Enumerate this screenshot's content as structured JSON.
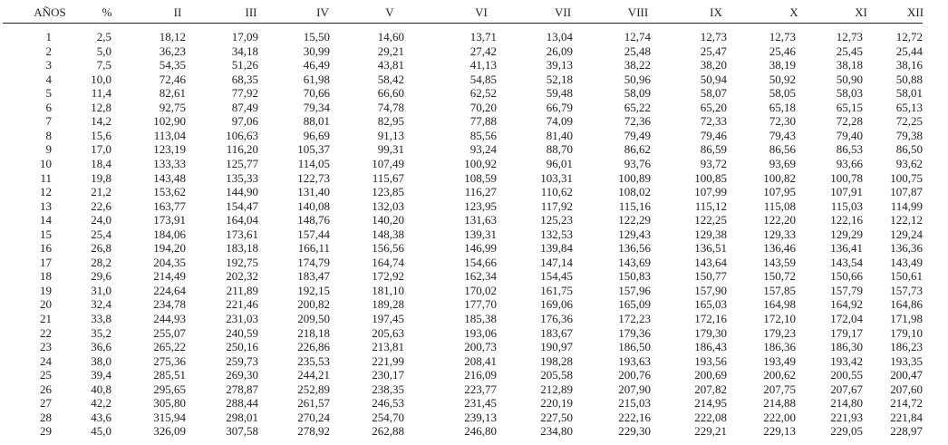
{
  "table": {
    "headers": [
      "AÑOS",
      "%",
      "II",
      "III",
      "IV",
      "V",
      "VI",
      "VII",
      "VIII",
      "IX",
      "X",
      "XI",
      "XII"
    ],
    "rows": [
      [
        "1",
        "2,5",
        "18,12",
        "17,09",
        "15,50",
        "14,60",
        "13,71",
        "13,04",
        "12,74",
        "12,73",
        "12,73",
        "12,73",
        "12,72"
      ],
      [
        "2",
        "5,0",
        "36,23",
        "34,18",
        "30,99",
        "29,21",
        "27,42",
        "26,09",
        "25,48",
        "25,47",
        "25,46",
        "25,45",
        "25,44"
      ],
      [
        "3",
        "7,5",
        "54,35",
        "51,26",
        "46,49",
        "43,81",
        "41,13",
        "39,13",
        "38,22",
        "38,20",
        "38,19",
        "38,18",
        "38,16"
      ],
      [
        "4",
        "10,0",
        "72,46",
        "68,35",
        "61,98",
        "58,42",
        "54,85",
        "52,18",
        "50,96",
        "50,94",
        "50,92",
        "50,90",
        "50,88"
      ],
      [
        "5",
        "11,4",
        "82,61",
        "77,92",
        "70,66",
        "66,60",
        "62,52",
        "59,48",
        "58,09",
        "58,07",
        "58,05",
        "58,03",
        "58,01"
      ],
      [
        "6",
        "12,8",
        "92,75",
        "87,49",
        "79,34",
        "74,78",
        "70,20",
        "66,79",
        "65,22",
        "65,20",
        "65,18",
        "65,15",
        "65,13"
      ],
      [
        "7",
        "14,2",
        "102,90",
        "97,06",
        "88,01",
        "82,95",
        "77,88",
        "74,09",
        "72,36",
        "72,33",
        "72,30",
        "72,28",
        "72,25"
      ],
      [
        "8",
        "15,6",
        "113,04",
        "106,63",
        "96,69",
        "91,13",
        "85,56",
        "81,40",
        "79,49",
        "79,46",
        "79,43",
        "79,40",
        "79,38"
      ],
      [
        "9",
        "17,0",
        "123,19",
        "116,20",
        "105,37",
        "99,31",
        "93,24",
        "88,70",
        "86,62",
        "86,59",
        "86,56",
        "86,53",
        "86,50"
      ],
      [
        "10",
        "18,4",
        "133,33",
        "125,77",
        "114,05",
        "107,49",
        "100,92",
        "96,01",
        "93,76",
        "93,72",
        "93,69",
        "93,66",
        "93,62"
      ],
      [
        "11",
        "19,8",
        "143,48",
        "135,33",
        "122,73",
        "115,67",
        "108,59",
        "103,31",
        "100,89",
        "100,85",
        "100,82",
        "100,78",
        "100,75"
      ],
      [
        "12",
        "21,2",
        "153,62",
        "144,90",
        "131,40",
        "123,85",
        "116,27",
        "110,62",
        "108,02",
        "107,99",
        "107,95",
        "107,91",
        "107,87"
      ],
      [
        "13",
        "22,6",
        "163,77",
        "154,47",
        "140,08",
        "132,03",
        "123,95",
        "117,92",
        "115,16",
        "115,12",
        "115,08",
        "115,03",
        "114,99"
      ],
      [
        "14",
        "24,0",
        "173,91",
        "164,04",
        "148,76",
        "140,20",
        "131,63",
        "125,23",
        "122,29",
        "122,25",
        "122,20",
        "122,16",
        "122,12"
      ],
      [
        "15",
        "25,4",
        "184,06",
        "173,61",
        "157,44",
        "148,38",
        "139,31",
        "132,53",
        "129,43",
        "129,38",
        "129,33",
        "129,29",
        "129,24"
      ],
      [
        "16",
        "26,8",
        "194,20",
        "183,18",
        "166,11",
        "156,56",
        "146,99",
        "139,84",
        "136,56",
        "136,51",
        "136,46",
        "136,41",
        "136,36"
      ],
      [
        "17",
        "28,2",
        "204,35",
        "192,75",
        "174,79",
        "164,74",
        "154,66",
        "147,14",
        "143,69",
        "143,64",
        "143,59",
        "143,54",
        "143,49"
      ],
      [
        "18",
        "29,6",
        "214,49",
        "202,32",
        "183,47",
        "172,92",
        "162,34",
        "154,45",
        "150,83",
        "150,77",
        "150,72",
        "150,66",
        "150,61"
      ],
      [
        "19",
        "31,0",
        "224,64",
        "211,89",
        "192,15",
        "181,10",
        "170,02",
        "161,75",
        "157,96",
        "157,90",
        "157,85",
        "157,79",
        "157,73"
      ],
      [
        "20",
        "32,4",
        "234,78",
        "221,46",
        "200,82",
        "189,28",
        "177,70",
        "169,06",
        "165,09",
        "165,03",
        "164,98",
        "164,92",
        "164,86"
      ],
      [
        "21",
        "33,8",
        "244,93",
        "231,03",
        "209,50",
        "197,45",
        "185,38",
        "176,36",
        "172,23",
        "172,16",
        "172,10",
        "172,04",
        "171,98"
      ],
      [
        "22",
        "35,2",
        "255,07",
        "240,59",
        "218,18",
        "205,63",
        "193,06",
        "183,67",
        "179,36",
        "179,30",
        "179,23",
        "179,17",
        "179,10"
      ],
      [
        "23",
        "36,6",
        "265,22",
        "250,16",
        "226,86",
        "213,81",
        "200,73",
        "190,97",
        "186,50",
        "186,43",
        "186,36",
        "186,30",
        "186,23"
      ],
      [
        "24",
        "38,0",
        "275,36",
        "259,73",
        "235,53",
        "221,99",
        "208,41",
        "198,28",
        "193,63",
        "193,56",
        "193,49",
        "193,42",
        "193,35"
      ],
      [
        "25",
        "39,4",
        "285,51",
        "269,30",
        "244,21",
        "230,17",
        "216,09",
        "205,58",
        "200,76",
        "200,69",
        "200,62",
        "200,55",
        "200,47"
      ],
      [
        "26",
        "40,8",
        "295,65",
        "278,87",
        "252,89",
        "238,35",
        "223,77",
        "212,89",
        "207,90",
        "207,82",
        "207,75",
        "207,67",
        "207,60"
      ],
      [
        "27",
        "42,2",
        "305,80",
        "288,44",
        "261,57",
        "246,53",
        "231,45",
        "220,19",
        "215,03",
        "214,95",
        "214,88",
        "214,80",
        "214,72"
      ],
      [
        "28",
        "43,6",
        "315,94",
        "298,01",
        "270,24",
        "254,70",
        "239,13",
        "227,50",
        "222,16",
        "222,08",
        "222,00",
        "221,93",
        "221,84"
      ],
      [
        "29",
        "45,0",
        "326,09",
        "307,58",
        "278,92",
        "262,88",
        "246,80",
        "234,80",
        "229,30",
        "229,21",
        "229,13",
        "229,05",
        "228,97"
      ]
    ]
  }
}
